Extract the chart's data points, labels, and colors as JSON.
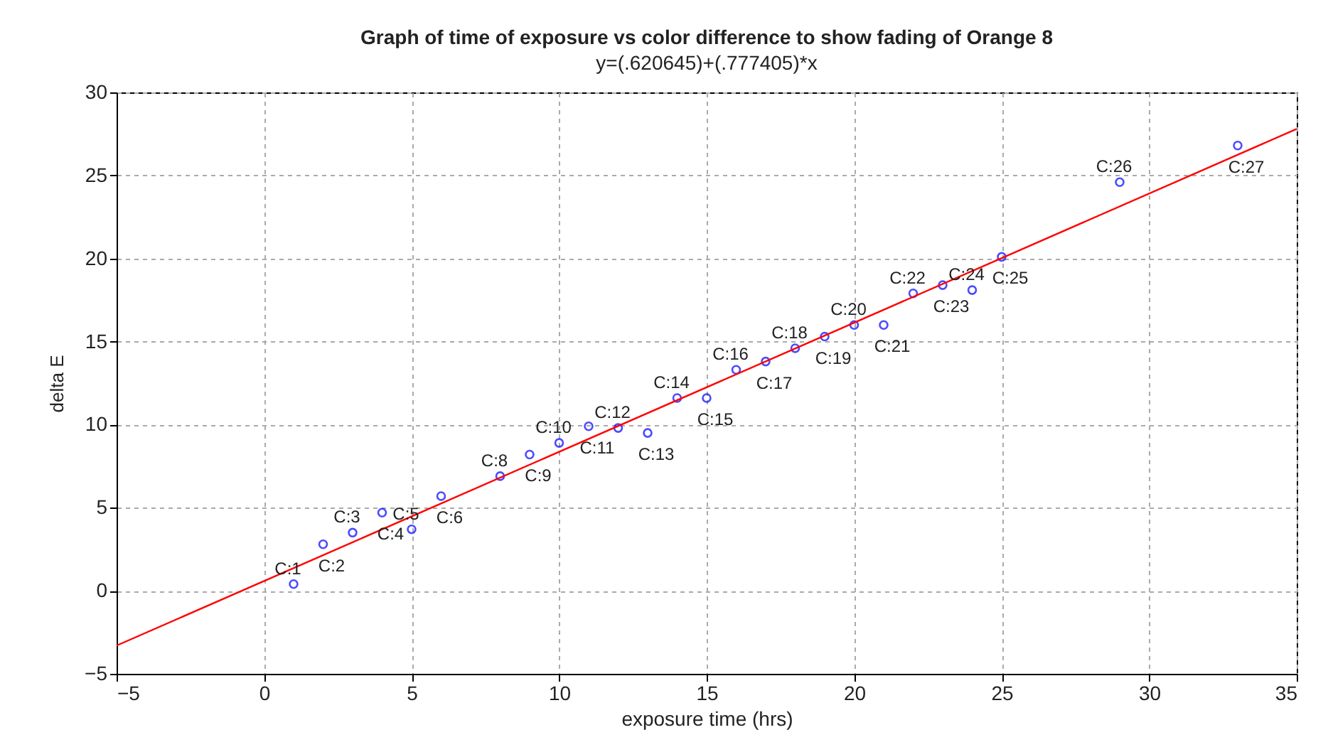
{
  "chart_data": {
    "type": "scatter",
    "title": "Graph of time of exposure vs color difference to show fading of Orange 8",
    "subtitle": "y=(.620645)+(.777405)*x",
    "xlabel": "exposure time (hrs)",
    "ylabel": "delta E",
    "xlim": [
      -5,
      35
    ],
    "ylim": [
      -5,
      30
    ],
    "xticks": [
      -5,
      0,
      5,
      10,
      15,
      20,
      25,
      30,
      35
    ],
    "yticks": [
      -5,
      0,
      5,
      10,
      15,
      20,
      25,
      30
    ],
    "grid": true,
    "series": [
      {
        "type": "scatter",
        "marker": "circle",
        "color": "#0000ff",
        "x": [
          1,
          2,
          3,
          4,
          5,
          6,
          8,
          9,
          10,
          11,
          12,
          13,
          14,
          15,
          16,
          17,
          18,
          19,
          20,
          21,
          22,
          23,
          24,
          25,
          29,
          33
        ],
        "values": [
          0.4,
          2.8,
          3.5,
          4.7,
          3.7,
          5.7,
          6.9,
          8.2,
          8.9,
          9.9,
          9.8,
          9.5,
          11.6,
          11.6,
          13.3,
          13.8,
          14.6,
          15.3,
          16.0,
          16.0,
          17.9,
          18.4,
          18.1,
          20.1,
          24.6,
          26.8
        ]
      },
      {
        "type": "line",
        "color": "#ff0000",
        "x": [
          -5,
          35
        ],
        "values": [
          -3.3,
          27.8
        ]
      }
    ],
    "annotations": [
      {
        "text": "C:1",
        "x": 1,
        "y": 0.4
      },
      {
        "text": "C:2",
        "x": 2,
        "y": 2.8
      },
      {
        "text": "C:3",
        "x": 3,
        "y": 3.5
      },
      {
        "text": "C:4",
        "x": 4,
        "y": 4.7
      },
      {
        "text": "C:5",
        "x": 5,
        "y": 3.7
      },
      {
        "text": "C:6",
        "x": 6,
        "y": 5.7
      },
      {
        "text": "C:8",
        "x": 8,
        "y": 6.9
      },
      {
        "text": "C:9",
        "x": 9,
        "y": 8.2
      },
      {
        "text": "C:10",
        "x": 10,
        "y": 8.9
      },
      {
        "text": "C:11",
        "x": 11,
        "y": 9.9
      },
      {
        "text": "C:12",
        "x": 12,
        "y": 9.8
      },
      {
        "text": "C:13",
        "x": 13,
        "y": 9.5
      },
      {
        "text": "C:14",
        "x": 14,
        "y": 11.6
      },
      {
        "text": "C:15",
        "x": 15,
        "y": 11.6
      },
      {
        "text": "C:16",
        "x": 16,
        "y": 13.3
      },
      {
        "text": "C:17",
        "x": 17,
        "y": 13.8
      },
      {
        "text": "C:18",
        "x": 18,
        "y": 14.6
      },
      {
        "text": "C:19",
        "x": 19,
        "y": 15.3
      },
      {
        "text": "C:20",
        "x": 20,
        "y": 16.0
      },
      {
        "text": "C:21",
        "x": 21,
        "y": 16.0
      },
      {
        "text": "C:22",
        "x": 22,
        "y": 17.9
      },
      {
        "text": "C:23",
        "x": 23,
        "y": 18.4
      },
      {
        "text": "C:24",
        "x": 24,
        "y": 18.1
      },
      {
        "text": "C:25",
        "x": 25,
        "y": 20.1
      },
      {
        "text": "C:26",
        "x": 29,
        "y": 24.6
      },
      {
        "text": "C:27",
        "x": 33,
        "y": 26.8
      }
    ]
  }
}
